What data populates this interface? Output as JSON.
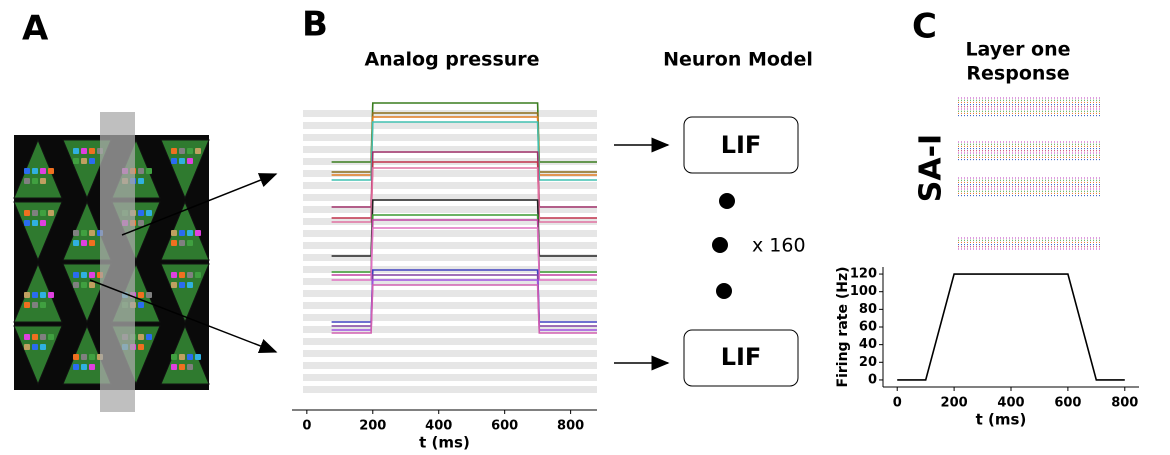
{
  "panel_letters": [
    "A",
    "B",
    "C"
  ],
  "neuron_model": {
    "title": "Neuron Model",
    "nodes": [
      "LIF",
      "LIF"
    ],
    "multiplier": "x 160"
  },
  "raster": {
    "title": [
      "Layer one",
      "Response"
    ],
    "label": "SA-I"
  },
  "chart_data": [
    {
      "type": "line",
      "title": "Analog pressure",
      "xlabel": "t (ms)",
      "xlim": [
        -45,
        880
      ],
      "xticks": [
        0,
        200,
        400,
        600,
        800
      ],
      "ylim": [
        0,
        300
      ],
      "x": [
        75,
        195,
        200,
        700,
        705,
        880
      ],
      "series": [
        {
          "color": "#3a7d1e",
          "values": [
            238,
            238,
            297,
            297,
            238,
            238
          ]
        },
        {
          "color": "#8a6d1a",
          "values": [
            228,
            228,
            287,
            287,
            228,
            228
          ]
        },
        {
          "color": "#e07b20",
          "values": [
            225,
            225,
            283,
            283,
            225,
            225
          ]
        },
        {
          "color": "#40c0b0",
          "values": [
            220,
            220,
            278,
            278,
            220,
            220
          ]
        },
        {
          "color": "#a0306a",
          "values": [
            193,
            193,
            248,
            248,
            193,
            193
          ]
        },
        {
          "color": "#c0304a",
          "values": [
            182,
            182,
            238,
            238,
            182,
            182
          ]
        },
        {
          "color": "#e070a0",
          "values": [
            178,
            178,
            232,
            232,
            178,
            178
          ]
        },
        {
          "color": "#222222",
          "values": [
            144,
            144,
            200,
            200,
            144,
            144
          ]
        },
        {
          "color": "#3a9a30",
          "values": [
            128,
            128,
            185,
            185,
            128,
            128
          ]
        },
        {
          "color": "#c040a0",
          "values": [
            125,
            125,
            180,
            180,
            125,
            125
          ]
        },
        {
          "color": "#e070c0",
          "values": [
            120,
            120,
            172,
            172,
            120,
            120
          ]
        },
        {
          "color": "#4040c0",
          "values": [
            78,
            78,
            130,
            130,
            78,
            78
          ]
        },
        {
          "color": "#8040a0",
          "values": [
            74,
            74,
            125,
            125,
            74,
            74
          ]
        },
        {
          "color": "#a050e0",
          "values": [
            70,
            70,
            120,
            120,
            70,
            70
          ]
        },
        {
          "color": "#d060b0",
          "values": [
            67,
            67,
            115,
            115,
            67,
            67
          ]
        }
      ]
    },
    {
      "type": "line",
      "xlabel": "t (ms)",
      "ylabel": "Firing rate (Hz)",
      "xlim": [
        -50,
        850
      ],
      "xticks": [
        0,
        200,
        400,
        600,
        800
      ],
      "ylim": [
        -8,
        128
      ],
      "yticks": [
        0,
        20,
        40,
        60,
        80,
        100,
        120
      ],
      "x": [
        0,
        100,
        200,
        600,
        700,
        800
      ],
      "series": [
        {
          "color": "#000000",
          "values": [
            0,
            0,
            120,
            120,
            0,
            0
          ]
        }
      ]
    }
  ]
}
